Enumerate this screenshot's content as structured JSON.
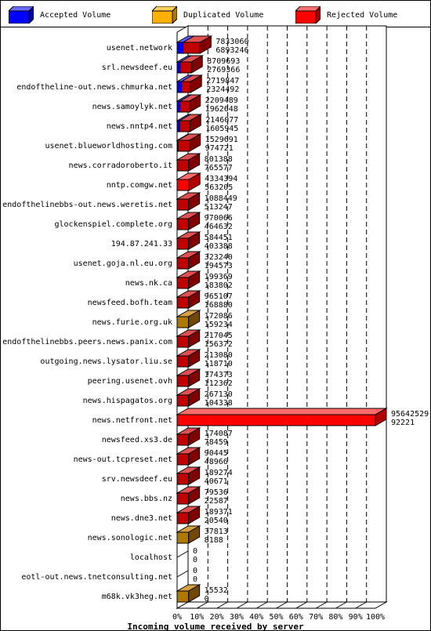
{
  "legend": [
    {
      "label": "Accepted Volume",
      "color": "#0000ff"
    },
    {
      "label": "Duplicated Volume",
      "color": "#ffb000"
    },
    {
      "label": "Rejected Volume",
      "color": "#ff0000"
    }
  ],
  "chart_data": {
    "type": "bar",
    "orientation": "horizontal",
    "xlabel": "Incoming volume received by server",
    "xlim": [
      0,
      100
    ],
    "xticks": [
      "0%",
      "10%",
      "20%",
      "30%",
      "40%",
      "50%",
      "60%",
      "70%",
      "80%",
      "90%",
      "100%"
    ],
    "grid": true,
    "legend_position": "top",
    "max_value": 95642529,
    "servers": [
      {
        "name": "usenet.network",
        "total": 7833060,
        "rejected_label": 6893246,
        "accepted": 3,
        "duplicated": 0,
        "rejected": 11.6,
        "lead": "accepted"
      },
      {
        "name": "srl.newsdeef.eu",
        "total": 3709693,
        "rejected_label": 2769366,
        "accepted": 1.5,
        "duplicated": 0,
        "rejected": 7.2,
        "lead": "accepted"
      },
      {
        "name": "endoftheline-out.news.chmurka.net",
        "total": 2719847,
        "rejected_label": 2324492,
        "accepted": 2.2,
        "duplicated": 0,
        "rejected": 6.8,
        "lead": "accepted"
      },
      {
        "name": "news.samoylyk.net",
        "total": 2209489,
        "rejected_label": 1962648,
        "accepted": 1.4,
        "duplicated": 0,
        "rejected": 6.2,
        "lead": "accepted"
      },
      {
        "name": "news.nntp4.net",
        "total": 2146077,
        "rejected_label": 1605945,
        "accepted": 1.2,
        "duplicated": 0,
        "rejected": 6.4,
        "lead": "accepted"
      },
      {
        "name": "usenet.blueworldhosting.com",
        "total": 1529691,
        "rejected_label": 974721,
        "accepted": 0.4,
        "duplicated": 0,
        "rejected": 6.2,
        "lead": "rejected"
      },
      {
        "name": "news.corradoroberto.it",
        "total": 801388,
        "rejected_label": 765577,
        "accepted": 0,
        "duplicated": 0,
        "rejected": 5.8,
        "lead": "rejected"
      },
      {
        "name": "nntp.comgw.net",
        "total": 4334394,
        "rejected_label": 563205,
        "accepted": 0,
        "duplicated": 0,
        "rejected": 6,
        "lead": "brightred"
      },
      {
        "name": "endofthelinebbs-out.news.weretis.net",
        "total": 1088449,
        "rejected_label": 513247,
        "accepted": 0,
        "duplicated": 0,
        "rejected": 5.8,
        "lead": "rejected"
      },
      {
        "name": "glockenspiel.complete.org",
        "total": 970066,
        "rejected_label": 464632,
        "accepted": 0,
        "duplicated": 0,
        "rejected": 5.8,
        "lead": "rejected"
      },
      {
        "name": "194.87.241.33",
        "total": 584451,
        "rejected_label": 403388,
        "accepted": 0,
        "duplicated": 0,
        "rejected": 5.8,
        "lead": "rejected"
      },
      {
        "name": "usenet.goja.nl.eu.org",
        "total": 323240,
        "rejected_label": 194573,
        "accepted": 0,
        "duplicated": 0,
        "rejected": 5.8,
        "lead": "rejected"
      },
      {
        "name": "news.nk.ca",
        "total": 199369,
        "rejected_label": 183802,
        "accepted": 0,
        "duplicated": 0,
        "rejected": 5.8,
        "lead": "rejected"
      },
      {
        "name": "newsfeed.bofh.team",
        "total": 965107,
        "rejected_label": 168880,
        "accepted": 0,
        "duplicated": 0,
        "rejected": 5.8,
        "lead": "rejected"
      },
      {
        "name": "news.furie.org.uk",
        "total": 172086,
        "rejected_label": 159234,
        "accepted": 0,
        "duplicated": 5.8,
        "rejected": 0,
        "lead": "duplicated"
      },
      {
        "name": "endofthelinebbs.peers.news.panix.com",
        "total": 217045,
        "rejected_label": 156372,
        "accepted": 0,
        "duplicated": 0,
        "rejected": 5.8,
        "lead": "rejected"
      },
      {
        "name": "outgoing.news.lysator.liu.se",
        "total": 213080,
        "rejected_label": 118710,
        "accepted": 0,
        "duplicated": 0,
        "rejected": 5.8,
        "lead": "rejected"
      },
      {
        "name": "peering.usenet.ovh",
        "total": 174373,
        "rejected_label": 112362,
        "accepted": 0,
        "duplicated": 0,
        "rejected": 5.8,
        "lead": "rejected"
      },
      {
        "name": "news.hispagatos.org",
        "total": 267130,
        "rejected_label": 104338,
        "accepted": 0,
        "duplicated": 0,
        "rejected": 5.8,
        "lead": "rejected"
      },
      {
        "name": "news.netfront.net",
        "total": 95642529,
        "rejected_label": 92221,
        "accepted": 0,
        "duplicated": 0,
        "rejected": 100,
        "lead": "brightred"
      },
      {
        "name": "newsfeed.xs3.de",
        "total": 174087,
        "rejected_label": 78459,
        "accepted": 0,
        "duplicated": 0,
        "rejected": 5.8,
        "lead": "rejected"
      },
      {
        "name": "news-out.tcpreset.net",
        "total": 90445,
        "rejected_label": 48966,
        "accepted": 0,
        "duplicated": 0,
        "rejected": 5.8,
        "lead": "rejected"
      },
      {
        "name": "srv.newsdeef.eu",
        "total": 189274,
        "rejected_label": 40671,
        "accepted": 0,
        "duplicated": 0,
        "rejected": 5.8,
        "lead": "rejected"
      },
      {
        "name": "news.bbs.nz",
        "total": 79536,
        "rejected_label": 22587,
        "accepted": 0,
        "duplicated": 0,
        "rejected": 5.8,
        "lead": "rejected"
      },
      {
        "name": "news.dne3.net",
        "total": 189371,
        "rejected_label": 20540,
        "accepted": 0,
        "duplicated": 0,
        "rejected": 5.8,
        "lead": "rejected"
      },
      {
        "name": "news.sonologic.net",
        "total": 37813,
        "rejected_label": 8188,
        "accepted": 0,
        "duplicated": 5.8,
        "rejected": 0,
        "lead": "duplicated"
      },
      {
        "name": "localhost",
        "total": 0,
        "rejected_label": 0,
        "accepted": 0,
        "duplicated": 0,
        "rejected": 0,
        "lead": "none"
      },
      {
        "name": "eotl-out.news.tnetconsulting.net",
        "total": 0,
        "rejected_label": 0,
        "accepted": 0,
        "duplicated": 0,
        "rejected": 0,
        "lead": "none"
      },
      {
        "name": "m68k.vk3heg.net",
        "total": 15532,
        "rejected_label": 0,
        "accepted": 0,
        "duplicated": 5.8,
        "rejected": 0,
        "lead": "duplicated"
      }
    ]
  }
}
